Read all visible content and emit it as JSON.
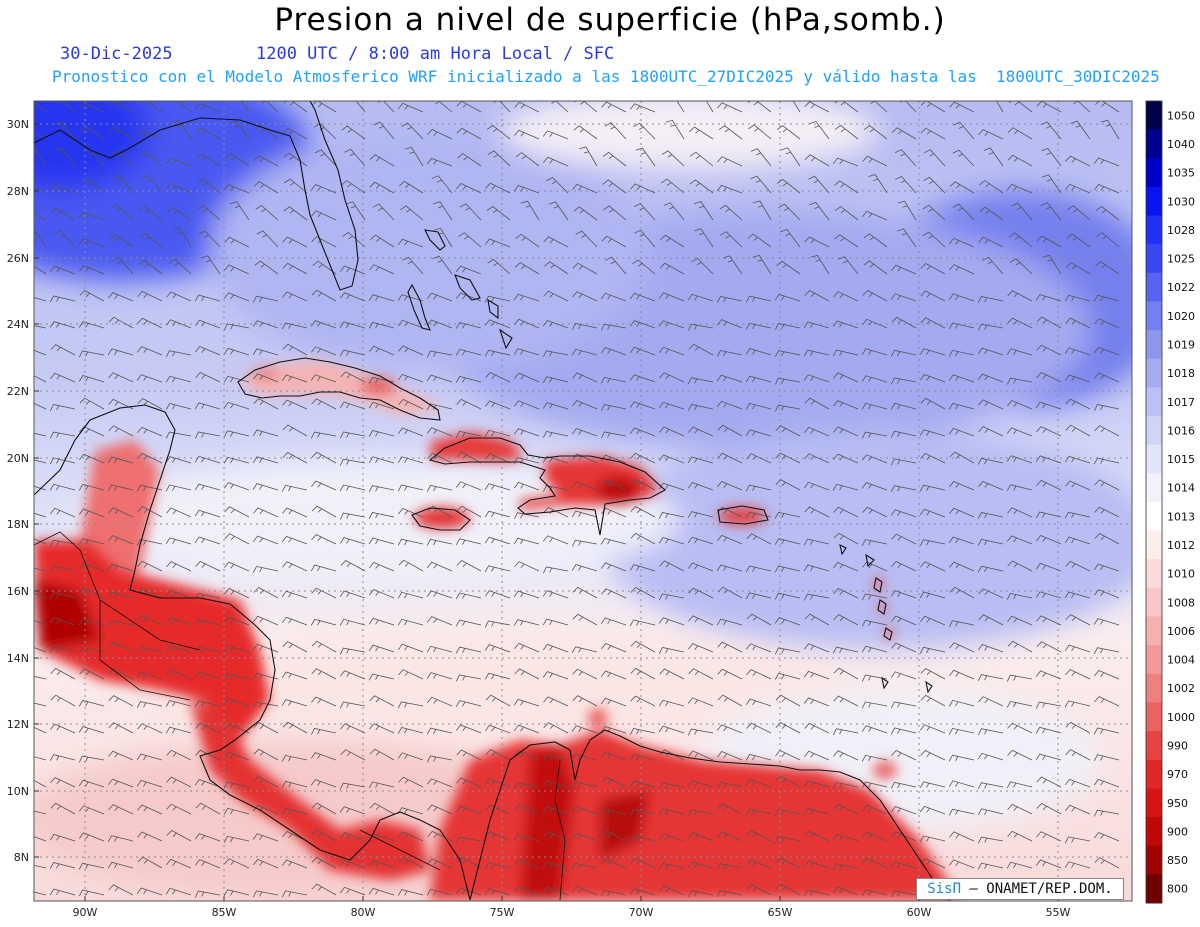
{
  "header": {
    "title": "Presion a nivel de superficie (hPa,somb.)",
    "date": "30-Dic-2025",
    "time_info": "1200 UTC / 8:00 am Hora Local / SFC",
    "forecast_info": "Pronostico con el Modelo Atmosferico WRF inicializado a las 1800UTC_27DIC2025 y válido hasta las  1800UTC_30DIC2025"
  },
  "map": {
    "lon_labels": [
      "90W",
      "85W",
      "80W",
      "75W",
      "70W",
      "65W",
      "60W",
      "55W"
    ],
    "lat_labels": [
      "30N",
      "28N",
      "26N",
      "24N",
      "22N",
      "20N",
      "18N",
      "16N",
      "14N",
      "12N",
      "10N",
      "8N"
    ],
    "land_color": "#e02020",
    "ocean_high_color": "#6070ee",
    "ocean_low_color": "#fbe3e3"
  },
  "colorbar": {
    "labels": [
      "1050",
      "1040",
      "1035",
      "1030",
      "1028",
      "1025",
      "1022",
      "1020",
      "1019",
      "1018",
      "1017",
      "1016",
      "1015",
      "1014",
      "1013",
      "1012",
      "1010",
      "1008",
      "1006",
      "1004",
      "1002",
      "1000",
      "990",
      "970",
      "950",
      "900",
      "850",
      "800"
    ],
    "colors": [
      "#00004a",
      "#00008c",
      "#0000cc",
      "#0a14f2",
      "#2232f4",
      "#3a48f2",
      "#5864f0",
      "#7480ee",
      "#8e96ee",
      "#a6acf0",
      "#bcc0f4",
      "#d0d4f6",
      "#e2e4f8",
      "#f2f2fb",
      "#ffffff",
      "#fdeded",
      "#fadada",
      "#f8c6c6",
      "#f5b0b0",
      "#f29898",
      "#ee8080",
      "#ea6262",
      "#e54444",
      "#e02828",
      "#d61414",
      "#c00808",
      "#9e0404",
      "#700000"
    ]
  },
  "credit": {
    "brand": "SisΠ",
    "text": " – ONAMET/REP.DOM."
  }
}
